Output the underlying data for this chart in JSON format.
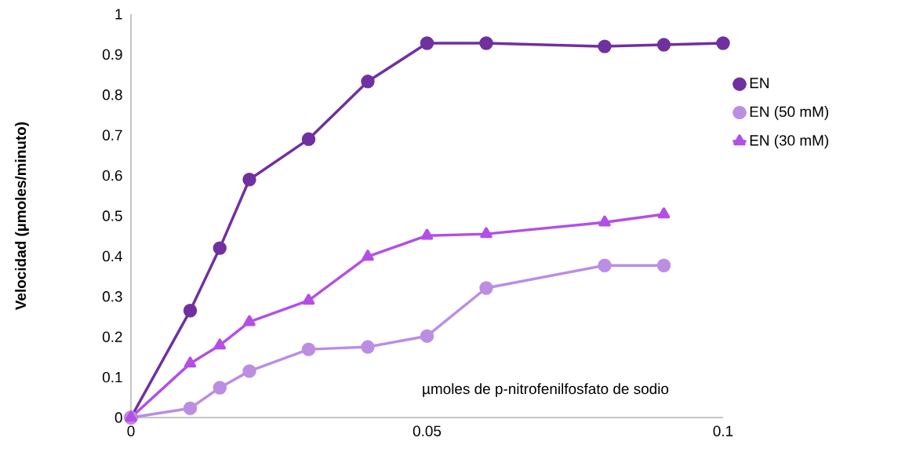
{
  "chart_data": {
    "type": "line",
    "xlabel": "µmoles de p-nitrofenilfosfato de sodio",
    "ylabel": "Velocidad (µmoles/minuto)",
    "xlim": [
      0,
      0.1
    ],
    "ylim": [
      0,
      1
    ],
    "xticks": [
      0,
      0.05,
      0.1
    ],
    "yticks": [
      0,
      0.1,
      0.2,
      0.3,
      0.4,
      0.5,
      0.6,
      0.7,
      0.8,
      0.9,
      1
    ],
    "grid": false,
    "legend": "right",
    "series": [
      {
        "name": "EN",
        "color": "#7030a0",
        "marker": "circle",
        "x": [
          0,
          0.01,
          0.015,
          0.02,
          0.03,
          0.04,
          0.05,
          0.06,
          0.08,
          0.09,
          0.1
        ],
        "values": [
          0,
          0.265,
          0.42,
          0.59,
          0.69,
          0.833,
          0.928,
          0.928,
          0.92,
          0.924,
          0.928
        ]
      },
      {
        "name": "EN (50 mM)",
        "color": "#bb8ee3",
        "marker": "circle",
        "x": [
          0,
          0.01,
          0.015,
          0.02,
          0.03,
          0.04,
          0.05,
          0.06,
          0.08,
          0.09
        ],
        "values": [
          0,
          0.023,
          0.074,
          0.115,
          0.169,
          0.175,
          0.202,
          0.321,
          0.377,
          0.377
        ]
      },
      {
        "name": "EN (30 mM)",
        "color": "#b44fe6",
        "marker": "triangle",
        "x": [
          0,
          0.01,
          0.015,
          0.02,
          0.03,
          0.04,
          0.05,
          0.06,
          0.08,
          0.09
        ],
        "values": [
          0,
          0.134,
          0.179,
          0.237,
          0.29,
          0.399,
          0.451,
          0.455,
          0.484,
          0.504
        ]
      }
    ]
  }
}
